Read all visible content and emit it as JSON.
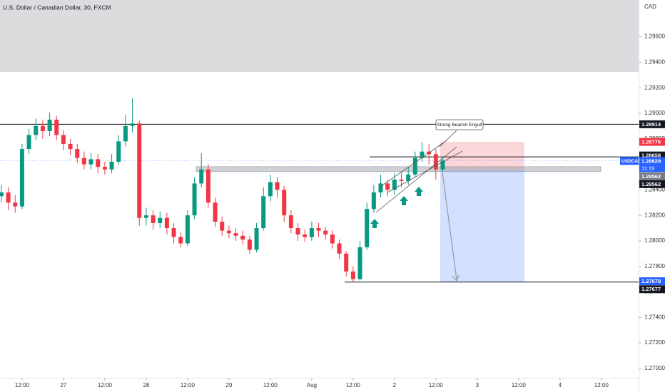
{
  "chart_data": {
    "type": "candlestick",
    "title": "U.S. Dollar / Canadian Dollar, 30, FXCM",
    "currency": "CAD",
    "up_color": "#089981",
    "down_color": "#f23645",
    "xlim": [
      -6.4,
      178.8
    ],
    "ylim": [
      1.26927,
      1.29888
    ],
    "xticks": [
      {
        "value": 0,
        "label": "12:00"
      },
      {
        "value": 12,
        "label": "27"
      },
      {
        "value": 24,
        "label": "12:00"
      },
      {
        "value": 36,
        "label": "28"
      },
      {
        "value": 48,
        "label": "12:00"
      },
      {
        "value": 60,
        "label": "29"
      },
      {
        "value": 72,
        "label": "12:00"
      },
      {
        "value": 84,
        "label": "Aug"
      },
      {
        "value": 96,
        "label": "12:00"
      },
      {
        "value": 108,
        "label": "2"
      },
      {
        "value": 120,
        "label": "12:00"
      },
      {
        "value": 132,
        "label": "3"
      },
      {
        "value": 144,
        "label": "12:00"
      },
      {
        "value": 156,
        "label": "4"
      },
      {
        "value": 168,
        "label": "12:00"
      }
    ],
    "yticks": [
      {
        "value": 1.27,
        "label": "1.27000"
      },
      {
        "value": 1.272,
        "label": "1.27200"
      },
      {
        "value": 1.274,
        "label": "1.27400"
      },
      {
        "value": 1.276,
        "label": "1.27600"
      },
      {
        "value": 1.278,
        "label": "1.27800"
      },
      {
        "value": 1.28,
        "label": "1.28000"
      },
      {
        "value": 1.282,
        "label": "1.28200"
      },
      {
        "value": 1.284,
        "label": "1.28400"
      },
      {
        "value": 1.286,
        "label": "1.28600"
      },
      {
        "value": 1.288,
        "label": "1.28800"
      },
      {
        "value": 1.29,
        "label": "1.29000"
      },
      {
        "value": 1.292,
        "label": "1.29200"
      },
      {
        "value": 1.294,
        "label": "1.29400"
      },
      {
        "value": 1.296,
        "label": "1.29600"
      }
    ],
    "x": [
      -6,
      -4,
      -2,
      0,
      2,
      4,
      6,
      8,
      10,
      12,
      14,
      16,
      18,
      20,
      22,
      24,
      26,
      28,
      30,
      32,
      34,
      36,
      38,
      40,
      42,
      44,
      46,
      48,
      50,
      52,
      54,
      56,
      58,
      60,
      62,
      64,
      66,
      68,
      70,
      72,
      74,
      76,
      78,
      80,
      82,
      84,
      86,
      88,
      90,
      92,
      94,
      96,
      98,
      100,
      102,
      104,
      106,
      108,
      110,
      112,
      114,
      116,
      118,
      120,
      122
    ],
    "open": [
      1.2835,
      1.2838,
      1.283,
      1.2827,
      1.2872,
      1.2883,
      1.289,
      1.2886,
      1.2895,
      1.2883,
      1.2876,
      1.2872,
      1.2865,
      1.286,
      1.2864,
      1.2858,
      1.2856,
      1.2862,
      1.2878,
      1.289,
      1.2892,
      1.2818,
      1.282,
      1.2814,
      1.2818,
      1.281,
      1.2803,
      1.2798,
      1.282,
      1.2845,
      1.2856,
      1.283,
      1.2815,
      1.2808,
      1.2806,
      1.2804,
      1.2801,
      1.2793,
      1.281,
      1.2835,
      1.2846,
      1.284,
      1.282,
      1.281,
      1.2805,
      1.2803,
      1.281,
      1.2808,
      1.2805,
      1.2798,
      1.279,
      1.2776,
      1.277,
      1.2795,
      1.2825,
      1.2838,
      1.2845,
      1.284,
      1.2848,
      1.2847,
      1.2852,
      1.2865,
      1.287,
      1.2868,
      1.2856
    ],
    "high": [
      1.2844,
      1.2842,
      1.2836,
      1.2876,
      1.2888,
      1.2896,
      1.2895,
      1.29006,
      1.2898,
      1.2887,
      1.288,
      1.2876,
      1.287,
      1.2869,
      1.2868,
      1.2862,
      1.2868,
      1.2883,
      1.2899,
      1.29117,
      1.2894,
      1.2826,
      1.2824,
      1.2823,
      1.2822,
      1.2814,
      1.2807,
      1.2824,
      1.285,
      1.28687,
      1.286,
      1.2834,
      1.2819,
      1.2812,
      1.281,
      1.2808,
      1.2804,
      1.2814,
      1.2842,
      1.2852,
      1.285,
      1.2843,
      1.2824,
      1.2814,
      1.2809,
      1.2815,
      1.2814,
      1.2811,
      1.2808,
      1.2801,
      1.2792,
      1.278,
      1.28,
      1.283,
      1.2844,
      1.2852,
      1.2848,
      1.2853,
      1.2854,
      1.2858,
      1.287,
      1.28776,
      1.2876,
      1.2872,
      1.2866
    ],
    "low": [
      1.283,
      1.2824,
      1.2822,
      1.2825,
      1.2868,
      1.2879,
      1.288,
      1.2882,
      1.2879,
      1.2871,
      1.2867,
      1.2861,
      1.2856,
      1.2856,
      1.2853,
      1.2852,
      1.2853,
      1.286,
      1.2874,
      1.2885,
      1.2812,
      1.2812,
      1.2809,
      1.281,
      1.2805,
      1.2798,
      1.2795,
      1.2796,
      1.2817,
      1.2842,
      1.2826,
      1.2811,
      1.2804,
      1.2802,
      1.28,
      1.2797,
      1.279,
      1.2791,
      1.2808,
      1.2831,
      1.2834,
      1.2815,
      1.2806,
      1.28,
      1.2799,
      1.28,
      1.2803,
      1.2801,
      1.2794,
      1.2786,
      1.2772,
      1.27677,
      1.2769,
      1.2793,
      1.2822,
      1.2834,
      1.2835,
      1.2836,
      1.2842,
      1.2844,
      1.285,
      1.2862,
      1.286,
      1.2848,
      1.2854
    ],
    "close": [
      1.2838,
      1.283,
      1.2827,
      1.2872,
      1.2883,
      1.289,
      1.2886,
      1.2895,
      1.2883,
      1.2876,
      1.2872,
      1.2865,
      1.286,
      1.2864,
      1.2858,
      1.2856,
      1.2862,
      1.2878,
      1.289,
      1.2892,
      1.2818,
      1.282,
      1.2814,
      1.2818,
      1.281,
      1.2803,
      1.2798,
      1.282,
      1.2845,
      1.2856,
      1.283,
      1.2815,
      1.2808,
      1.2806,
      1.2804,
      1.2801,
      1.2793,
      1.281,
      1.2835,
      1.2846,
      1.284,
      1.282,
      1.281,
      1.2805,
      1.2803,
      1.281,
      1.2808,
      1.2805,
      1.2798,
      1.279,
      1.2776,
      1.277,
      1.2795,
      1.2825,
      1.2838,
      1.2845,
      1.284,
      1.2848,
      1.2847,
      1.2852,
      1.2865,
      1.287,
      1.2868,
      1.2856,
      1.28629
    ],
    "horizontal_lines": [
      1.28914,
      1.28658,
      1.28562,
      1.27677
    ],
    "position": {
      "stop": 1.28776,
      "entry": 1.28562,
      "target": 1.27678
    },
    "last_price": {
      "symbol": "USDCAD",
      "value": 1.28629,
      "countdown": "11:19"
    },
    "annotation": "Strong Bearish Engulf"
  }
}
